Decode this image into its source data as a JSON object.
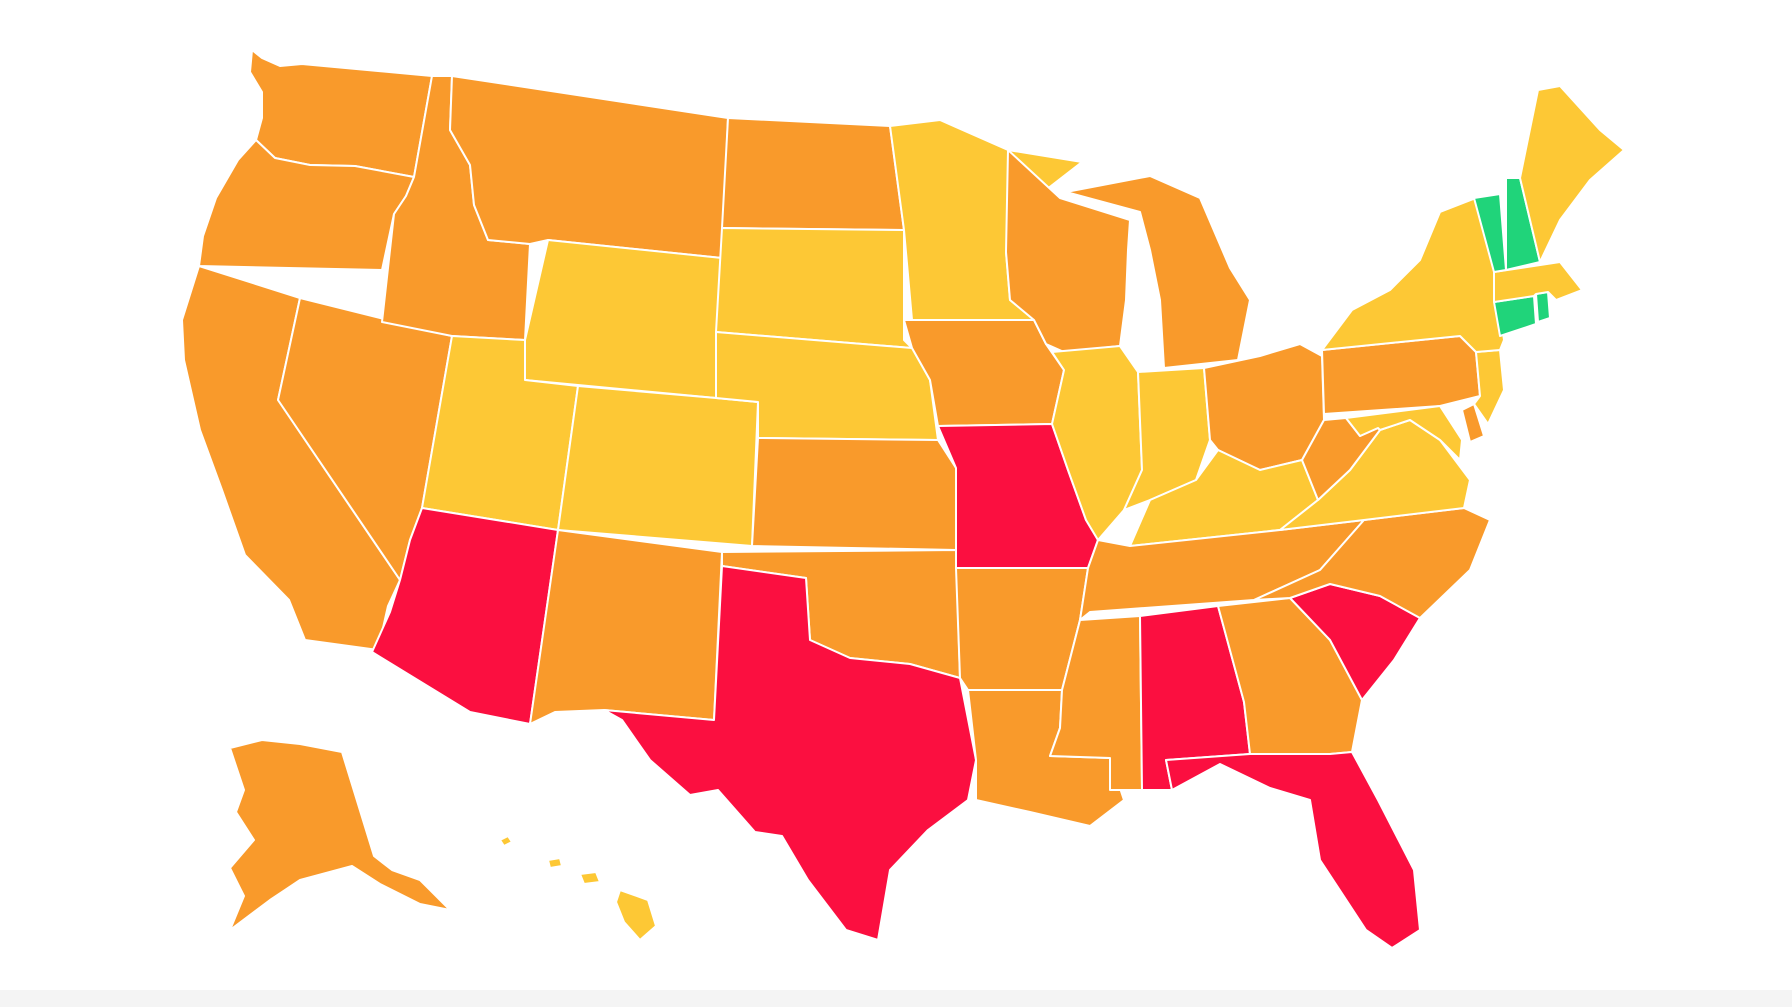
{
  "colors": {
    "red": "#fb0f40",
    "orange": "#f99a2b",
    "yellow": "#fdc835",
    "green": "#20d47a",
    "border": "#ffffff",
    "background": "#ffffff"
  },
  "states": [
    {
      "id": "WA",
      "category": "orange"
    },
    {
      "id": "OR",
      "category": "orange"
    },
    {
      "id": "CA",
      "category": "orange"
    },
    {
      "id": "ID",
      "category": "orange"
    },
    {
      "id": "NV",
      "category": "orange"
    },
    {
      "id": "MT",
      "category": "orange"
    },
    {
      "id": "WY",
      "category": "yellow"
    },
    {
      "id": "UT",
      "category": "yellow"
    },
    {
      "id": "AZ",
      "category": "red"
    },
    {
      "id": "CO",
      "category": "yellow"
    },
    {
      "id": "NM",
      "category": "orange"
    },
    {
      "id": "ND",
      "category": "orange"
    },
    {
      "id": "SD",
      "category": "yellow"
    },
    {
      "id": "NE",
      "category": "yellow"
    },
    {
      "id": "KS",
      "category": "orange"
    },
    {
      "id": "OK",
      "category": "orange"
    },
    {
      "id": "TX",
      "category": "red"
    },
    {
      "id": "MN",
      "category": "yellow"
    },
    {
      "id": "IA",
      "category": "orange"
    },
    {
      "id": "MO",
      "category": "red"
    },
    {
      "id": "AR",
      "category": "orange"
    },
    {
      "id": "LA",
      "category": "orange"
    },
    {
      "id": "WI",
      "category": "orange"
    },
    {
      "id": "IL",
      "category": "yellow"
    },
    {
      "id": "MI",
      "category": "orange"
    },
    {
      "id": "IN",
      "category": "yellow"
    },
    {
      "id": "OH",
      "category": "orange"
    },
    {
      "id": "KY",
      "category": "yellow"
    },
    {
      "id": "TN",
      "category": "orange"
    },
    {
      "id": "MS",
      "category": "orange"
    },
    {
      "id": "AL",
      "category": "red"
    },
    {
      "id": "GA",
      "category": "orange"
    },
    {
      "id": "FL",
      "category": "red"
    },
    {
      "id": "SC",
      "category": "red"
    },
    {
      "id": "NC",
      "category": "orange"
    },
    {
      "id": "VA",
      "category": "yellow"
    },
    {
      "id": "WV",
      "category": "orange"
    },
    {
      "id": "PA",
      "category": "orange"
    },
    {
      "id": "NY",
      "category": "yellow"
    },
    {
      "id": "NJ",
      "category": "yellow"
    },
    {
      "id": "DE",
      "category": "orange"
    },
    {
      "id": "MD",
      "category": "yellow"
    },
    {
      "id": "CT",
      "category": "green"
    },
    {
      "id": "RI",
      "category": "green"
    },
    {
      "id": "MA",
      "category": "yellow"
    },
    {
      "id": "VT",
      "category": "green"
    },
    {
      "id": "NH",
      "category": "green"
    },
    {
      "id": "ME",
      "category": "yellow"
    },
    {
      "id": "AK",
      "category": "orange"
    },
    {
      "id": "HI",
      "category": "yellow"
    }
  ]
}
